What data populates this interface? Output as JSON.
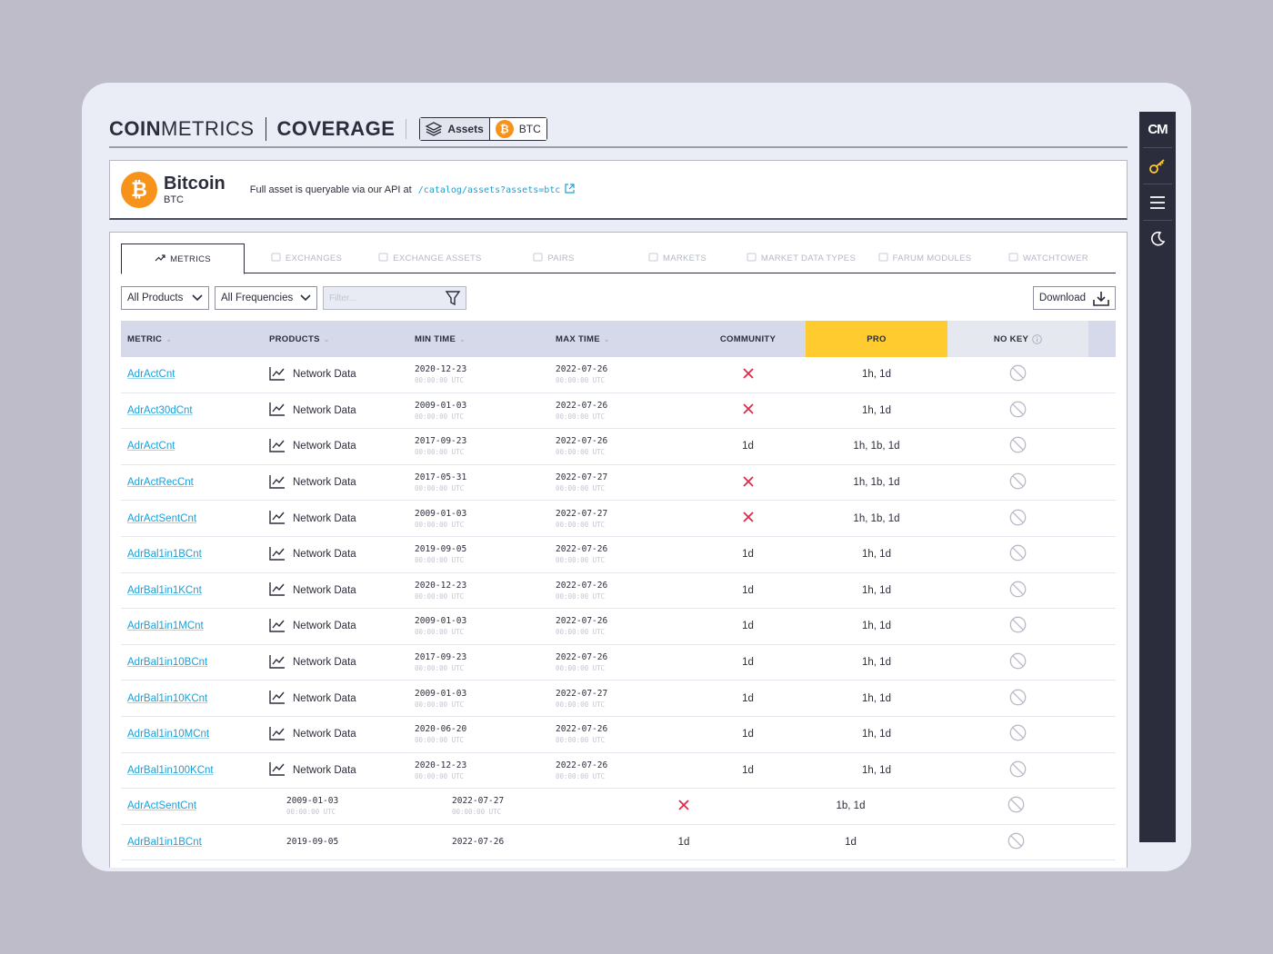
{
  "header": {
    "logo_bold": "COIN",
    "logo_light": "METRICS",
    "section_title": "COVERAGE",
    "crumb_assets": "Assets",
    "crumb_btc": "BTC"
  },
  "asset": {
    "name": "Bitcoin",
    "symbol": "BTC",
    "api_note": "Full asset is queryable via our API at",
    "api_path": "/catalog/assets?assets=btc",
    "icon_glyph": "₿"
  },
  "tabs": [
    {
      "label": "METRICS",
      "icon": "trend-up-icon"
    },
    {
      "label": "EXCHANGES",
      "icon": "exchange-icon"
    },
    {
      "label": "EXCHANGE ASSETS",
      "icon": "exchange-assets-icon"
    },
    {
      "label": "PAIRS",
      "icon": "pairs-icon"
    },
    {
      "label": "MARKETS",
      "icon": "line-chart-icon"
    },
    {
      "label": "MARKET DATA TYPES",
      "icon": "line-chart-icon"
    },
    {
      "label": "FARUM MODULES",
      "icon": "module-icon"
    },
    {
      "label": "WATCHTOWER",
      "icon": "tower-icon"
    }
  ],
  "filters": {
    "products": "All Products",
    "frequencies": "All Frequencies",
    "filter_placeholder": "Filter...",
    "download": "Download"
  },
  "columns": {
    "metric": "METRIC",
    "products": "PRODUCTS",
    "min_time": "MIN TIME",
    "max_time": "MAX TIME",
    "community": "COMMUNITY",
    "pro": "PRO",
    "no_key": "NO KEY"
  },
  "rows": [
    {
      "metric": "AdrActCnt",
      "product": "Network Data",
      "min_date": "2020-12-23",
      "min_time": "00:00:00 UTC",
      "max_date": "2022-07-26",
      "max_time": "00:00:00 UTC",
      "community": "x",
      "pro": "1h, 1d"
    },
    {
      "metric": "AdrAct30dCnt",
      "product": "Network Data",
      "min_date": "2009-01-03",
      "min_time": "00:00:00 UTC",
      "max_date": "2022-07-26",
      "max_time": "00:00:00 UTC",
      "community": "x",
      "pro": "1h, 1d"
    },
    {
      "metric": "AdrActCnt",
      "product": "Network Data",
      "min_date": "2017-09-23",
      "min_time": "00:00:00 UTC",
      "max_date": "2022-07-26",
      "max_time": "00:00:00 UTC",
      "community": "1d",
      "pro": "1h, 1b, 1d"
    },
    {
      "metric": "AdrActRecCnt",
      "product": "Network Data",
      "min_date": "2017-05-31",
      "min_time": "00:00:00 UTC",
      "max_date": "2022-07-27",
      "max_time": "00:00:00 UTC",
      "community": "x",
      "pro": "1h, 1b, 1d"
    },
    {
      "metric": "AdrActSentCnt",
      "product": "Network Data",
      "min_date": "2009-01-03",
      "min_time": "00:00:00 UTC",
      "max_date": "2022-07-27",
      "max_time": "00:00:00 UTC",
      "community": "x",
      "pro": "1h, 1b, 1d"
    },
    {
      "metric": "AdrBal1in1BCnt",
      "product": "Network Data",
      "min_date": "2019-09-05",
      "min_time": "00:00:00 UTC",
      "max_date": "2022-07-26",
      "max_time": "00:00:00 UTC",
      "community": "1d",
      "pro": "1h, 1d"
    },
    {
      "metric": "AdrBal1in1KCnt",
      "product": "Network Data",
      "min_date": "2020-12-23",
      "min_time": "00:00:00 UTC",
      "max_date": "2022-07-26",
      "max_time": "00:00:00 UTC",
      "community": "1d",
      "pro": "1h, 1d"
    },
    {
      "metric": "AdrBal1in1MCnt",
      "product": "Network Data",
      "min_date": "2009-01-03",
      "min_time": "00:00:00 UTC",
      "max_date": "2022-07-26",
      "max_time": "00:00:00 UTC",
      "community": "1d",
      "pro": "1h, 1d"
    },
    {
      "metric": "AdrBal1in10BCnt",
      "product": "Network Data",
      "min_date": "2017-09-23",
      "min_time": "00:00:00 UTC",
      "max_date": "2022-07-26",
      "max_time": "00:00:00 UTC",
      "community": "1d",
      "pro": "1h, 1d"
    },
    {
      "metric": "AdrBal1in10KCnt",
      "product": "Network Data",
      "min_date": "2009-01-03",
      "min_time": "00:00:00 UTC",
      "max_date": "2022-07-27",
      "max_time": "00:00:00 UTC",
      "community": "1d",
      "pro": "1h, 1d"
    },
    {
      "metric": "AdrBal1in10MCnt",
      "product": "Network Data",
      "min_date": "2020-06-20",
      "min_time": "00:00:00 UTC",
      "max_date": "2022-07-26",
      "max_time": "00:00:00 UTC",
      "community": "1d",
      "pro": "1h, 1d"
    },
    {
      "metric": "AdrBal1in100KCnt",
      "product": "Network Data",
      "min_date": "2020-12-23",
      "min_time": "00:00:00 UTC",
      "max_date": "2022-07-26",
      "max_time": "00:00:00 UTC",
      "community": "1d",
      "pro": "1h, 1d"
    }
  ],
  "alt_rows": [
    {
      "metric": "AdrActSentCnt",
      "min_date": "2009-01-03",
      "min_time": "00:00:00 UTC",
      "max_date": "2022-07-27",
      "max_time": "00:00:00 UTC",
      "community": "x",
      "pro": "1b, 1d"
    },
    {
      "metric": "AdrBal1in1BCnt",
      "min_date": "2019-09-05",
      "min_time": "",
      "max_date": "2022-07-26",
      "max_time": "",
      "community": "1d",
      "pro": "1d"
    }
  ],
  "rail": {
    "logo": "CM",
    "items": [
      "key-icon",
      "menu-icon",
      "moon-icon"
    ]
  },
  "colors": {
    "accent_link": "#1aa0d8",
    "pro_header": "#ffcb2e",
    "x_mark": "#e0294a",
    "bitcoin": "#f7931a",
    "rail": "#2b2d3c"
  }
}
